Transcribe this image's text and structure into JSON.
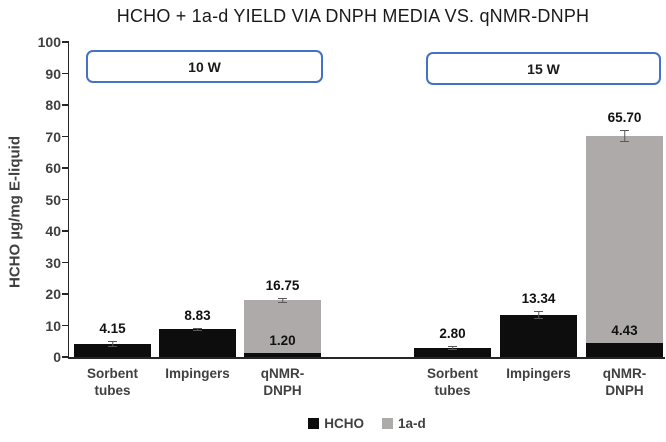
{
  "chart_data": {
    "type": "bar",
    "stacked": true,
    "title": "HCHO + 1a-d YIELD VIA DNPH MEDIA VS. qNMR-DNPH",
    "ylabel": "HCHO µg/mg E-liquid",
    "ylim": [
      0,
      100
    ],
    "ytick_step": 10,
    "grid": false,
    "legend_position": "bottom",
    "legend": [
      {
        "name": "HCHO",
        "color": "#0d0d0d"
      },
      {
        "name": "1a-d",
        "color": "#aeaaa9"
      }
    ],
    "groups": [
      {
        "label": "10 W",
        "bars": [
          {
            "category": "Sorbent tubes",
            "category_lines": [
              "Sorbent",
              "tubes"
            ],
            "HCHO": 4.15,
            "1a-d": null,
            "err": 0.9,
            "labels": {
              "HCHO": "4.15"
            }
          },
          {
            "category": "Impingers",
            "category_lines": [
              "Impingers"
            ],
            "HCHO": 8.83,
            "1a-d": null,
            "err": 0.5,
            "labels": {
              "HCHO": "8.83"
            }
          },
          {
            "category": "qNMR-DNPH",
            "category_lines": [
              "qNMR-",
              "DNPH"
            ],
            "HCHO": 1.2,
            "1a-d": 16.75,
            "err": 0.8,
            "labels": {
              "HCHO": "1.20",
              "1a-d": "16.75"
            }
          }
        ]
      },
      {
        "label": "15 W",
        "bars": [
          {
            "category": "Sorbent tubes",
            "category_lines": [
              "Sorbent",
              "tubes"
            ],
            "HCHO": 2.8,
            "1a-d": null,
            "err": 0.6,
            "labels": {
              "HCHO": "2.80"
            }
          },
          {
            "category": "Impingers",
            "category_lines": [
              "Impingers"
            ],
            "HCHO": 13.34,
            "1a-d": null,
            "err": 1.2,
            "labels": {
              "HCHO": "13.34"
            }
          },
          {
            "category": "qNMR-DNPH",
            "category_lines": [
              "qNMR-",
              "DNPH"
            ],
            "HCHO": 4.43,
            "1a-d": 65.7,
            "err": 1.8,
            "labels": {
              "HCHO": "4.43",
              "1a-d": "65.70"
            }
          }
        ]
      }
    ]
  }
}
